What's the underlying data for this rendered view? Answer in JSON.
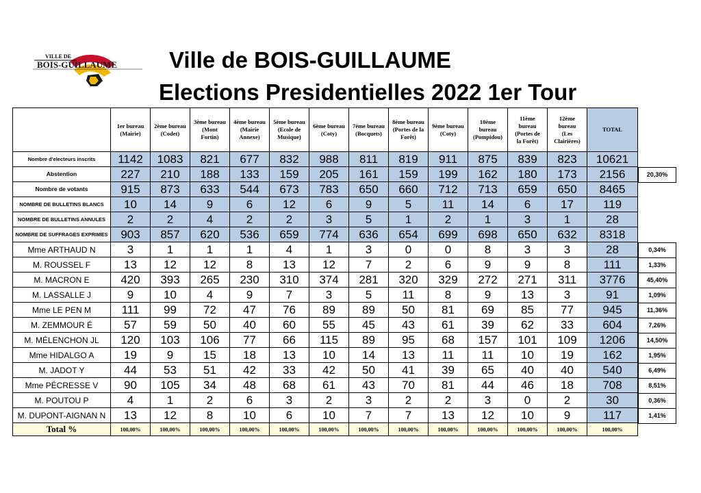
{
  "logo": {
    "line1": "VILLE DE",
    "line2": "BOIS-GUILLAUME",
    "colors": {
      "red": "#c8102e",
      "yellow": "#f2b705",
      "black": "#1a1a1a"
    }
  },
  "title": {
    "line1": "Ville de BOIS-GUILLAUME",
    "line2": "Elections Presidentielles 2022 1er Tour"
  },
  "header": [
    [
      "1er bureau",
      "(Mairie)"
    ],
    [
      "2ème bureau",
      "(Codet)"
    ],
    [
      "3ème bureau",
      "(Mont",
      "Fortin)"
    ],
    [
      "4ème bureau",
      "(Mairie",
      "Annexe)"
    ],
    [
      "5ème bureau",
      "(Ecole de",
      "Musique)"
    ],
    [
      "6ème bureau",
      "(Coty)"
    ],
    [
      "7ème bureau",
      "(Bocquets)"
    ],
    [
      "8ème bureau",
      "(Portes de la",
      "Forêt)"
    ],
    [
      "9ème bureau",
      "(Coty)"
    ],
    [
      "10ème",
      "bureau",
      "(Pompidou)"
    ],
    [
      "11ème",
      "bureau",
      "(Portes de",
      "la Forêt)"
    ],
    [
      "12ème",
      "bureau",
      "(Les",
      "Clairières)"
    ],
    [
      "TOTAL"
    ]
  ],
  "summary_rows": [
    {
      "label": "Nombre d'electeurs inscrits",
      "values": [
        "1142",
        "1083",
        "821",
        "677",
        "832",
        "988",
        "811",
        "819",
        "911",
        "875",
        "839",
        "823"
      ],
      "total": "10621",
      "pct": ""
    },
    {
      "label": "Abstention",
      "values": [
        "227",
        "210",
        "188",
        "133",
        "159",
        "205",
        "161",
        "159",
        "199",
        "162",
        "180",
        "173"
      ],
      "total": "2156",
      "pct": "20,30%"
    },
    {
      "label": "Nombre de votants",
      "values": [
        "915",
        "873",
        "633",
        "544",
        "673",
        "783",
        "650",
        "660",
        "712",
        "713",
        "659",
        "650"
      ],
      "total": "8465",
      "pct": ""
    },
    {
      "label": "NOMBRE DE BULLETINS BLANCS",
      "values": [
        "10",
        "14",
        "9",
        "6",
        "12",
        "6",
        "9",
        "5",
        "11",
        "14",
        "6",
        "17"
      ],
      "total": "119",
      "pct": ""
    },
    {
      "label": "NOMBRE DE BULLETINS ANNULES",
      "values": [
        "2",
        "2",
        "4",
        "2",
        "2",
        "3",
        "5",
        "1",
        "2",
        "1",
        "3",
        "1"
      ],
      "total": "28",
      "pct": ""
    },
    {
      "label": "NOMBRE DE SUFFRAGES EXPRIMES",
      "values": [
        "903",
        "857",
        "620",
        "536",
        "659",
        "774",
        "636",
        "654",
        "699",
        "698",
        "650",
        "632"
      ],
      "total": "8318",
      "pct": ""
    }
  ],
  "candidates": [
    {
      "label": "Mme ARTHAUD N",
      "values": [
        "3",
        "1",
        "1",
        "1",
        "4",
        "1",
        "3",
        "0",
        "0",
        "8",
        "3",
        "3"
      ],
      "total": "28",
      "pct": "0,34%"
    },
    {
      "label": "M. ROUSSEL F",
      "values": [
        "13",
        "12",
        "12",
        "8",
        "13",
        "12",
        "7",
        "2",
        "6",
        "9",
        "9",
        "8"
      ],
      "total": "111",
      "pct": "1,33%"
    },
    {
      "label": "M. MACRON E",
      "values": [
        "420",
        "393",
        "265",
        "230",
        "310",
        "374",
        "281",
        "320",
        "329",
        "272",
        "271",
        "311"
      ],
      "total": "3776",
      "pct": "45,40%"
    },
    {
      "label": "M. LASSALLE J",
      "values": [
        "9",
        "10",
        "4",
        "9",
        "7",
        "3",
        "5",
        "11",
        "8",
        "9",
        "13",
        "3"
      ],
      "total": "91",
      "pct": "1,09%"
    },
    {
      "label": "Mme LE PEN M",
      "values": [
        "111",
        "99",
        "72",
        "47",
        "76",
        "89",
        "89",
        "50",
        "81",
        "69",
        "85",
        "77"
      ],
      "total": "945",
      "pct": "11,36%"
    },
    {
      "label": "M. ZEMMOUR É",
      "values": [
        "57",
        "59",
        "50",
        "40",
        "60",
        "55",
        "45",
        "43",
        "61",
        "39",
        "62",
        "33"
      ],
      "total": "604",
      "pct": "7,26%"
    },
    {
      "label": "M. MÉLENCHON JL",
      "values": [
        "120",
        "103",
        "106",
        "77",
        "66",
        "115",
        "89",
        "95",
        "68",
        "157",
        "101",
        "109"
      ],
      "total": "1206",
      "pct": "14,50%"
    },
    {
      "label": "Mme HIDALGO A",
      "values": [
        "19",
        "9",
        "15",
        "18",
        "13",
        "10",
        "14",
        "13",
        "11",
        "11",
        "10",
        "19"
      ],
      "total": "162",
      "pct": "1,95%"
    },
    {
      "label": "M. JADOT Y",
      "values": [
        "44",
        "53",
        "51",
        "42",
        "33",
        "42",
        "50",
        "41",
        "39",
        "65",
        "40",
        "40"
      ],
      "total": "540",
      "pct": "6,49%"
    },
    {
      "label": "Mme PÉCRESSE V",
      "values": [
        "90",
        "105",
        "34",
        "48",
        "68",
        "61",
        "43",
        "70",
        "81",
        "44",
        "46",
        "18"
      ],
      "total": "708",
      "pct": "8,51%"
    },
    {
      "label": "M. POUTOU P",
      "values": [
        "4",
        "1",
        "2",
        "6",
        "3",
        "2",
        "3",
        "2",
        "2",
        "3",
        "0",
        "2"
      ],
      "total": "30",
      "pct": "0,36%"
    },
    {
      "label": "M. DUPONT-AIGNAN N",
      "values": [
        "13",
        "12",
        "8",
        "10",
        "6",
        "10",
        "7",
        "7",
        "13",
        "12",
        "10",
        "9"
      ],
      "total": "117",
      "pct": "1,41%"
    }
  ],
  "total_row": {
    "label": "Total %",
    "values": [
      "100,00%",
      "100,00%",
      "100,00%",
      "100,00%",
      "100,00%",
      "100,00%",
      "100,00%",
      "100,00%",
      "100,00%",
      "100,00%",
      "100,00%",
      "100,00%",
      "100,00%"
    ]
  },
  "colors": {
    "blue_cell": "#b8cce4",
    "total_row_bg": "#fefcdc"
  }
}
